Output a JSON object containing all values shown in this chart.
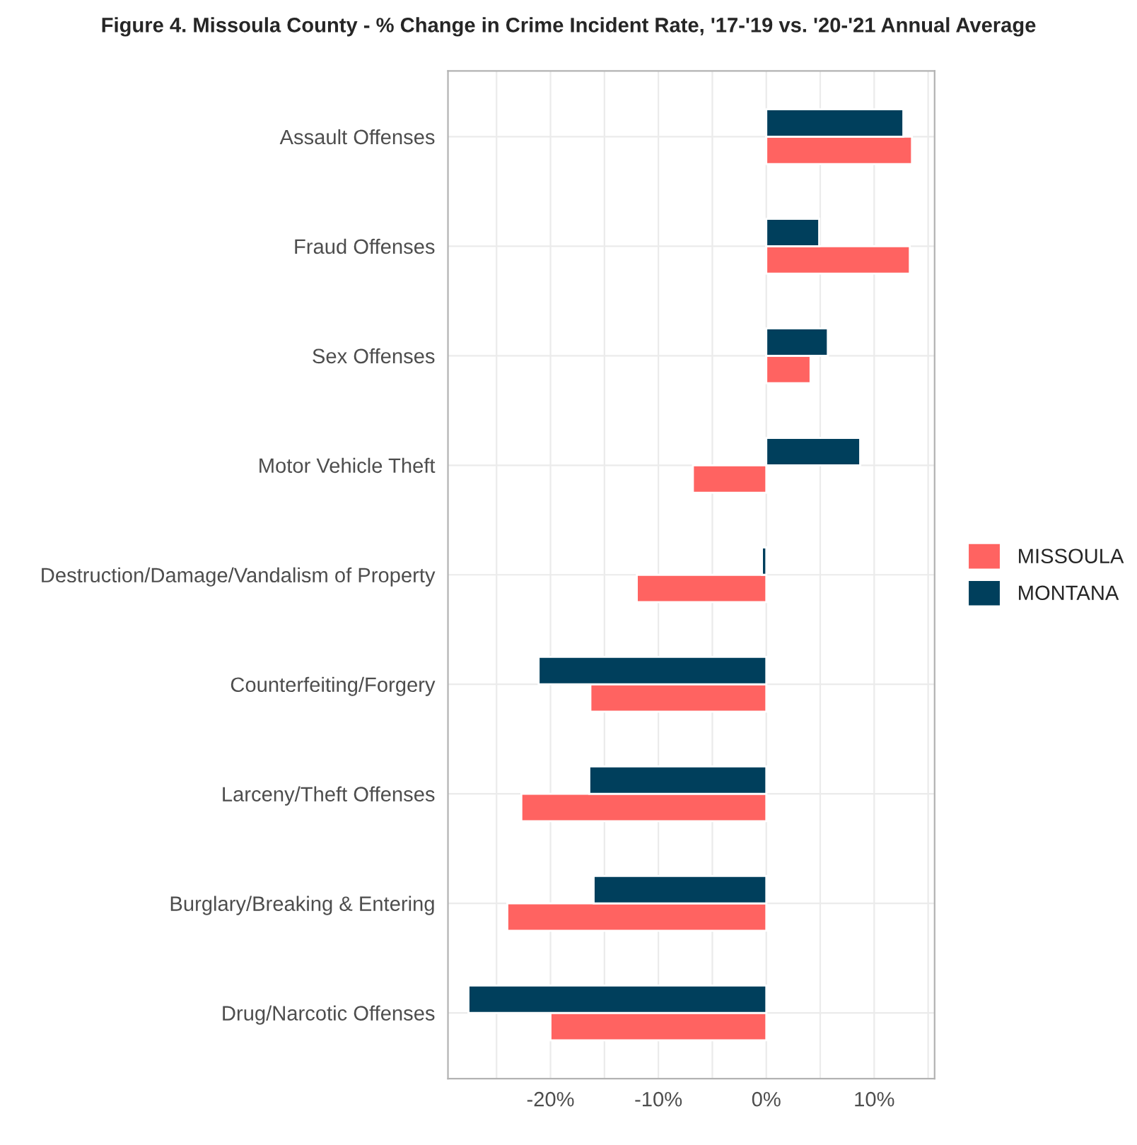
{
  "chart_data": {
    "type": "bar",
    "orientation": "horizontal",
    "title": "Figure 4. Missoula County - % Change in Crime Incident Rate, '17-'19 vs. '20-'21 Annual Average",
    "categories": [
      "Assault Offenses",
      "Fraud Offenses",
      "Sex Offenses",
      "Motor Vehicle Theft",
      "Destruction/Damage/Vandalism of Property",
      "Counterfeiting/Forgery",
      "Larceny/Theft Offenses",
      "Burglary/Breaking & Entering",
      "Drug/Narcotic Offenses"
    ],
    "series": [
      {
        "name": "MISSOULA",
        "color": "#ff6361",
        "values": [
          13.5,
          13.3,
          4.1,
          -6.8,
          -12.0,
          -16.3,
          -22.7,
          -24.0,
          -20.0
        ]
      },
      {
        "name": "MONTANA",
        "color": "#003f5c",
        "values": [
          12.7,
          4.9,
          5.7,
          8.7,
          -0.4,
          -21.1,
          -16.4,
          -16.0,
          -27.6
        ]
      }
    ],
    "xlim": [
      -29.5,
      15.6
    ],
    "xticks": [
      {
        "value": -25,
        "label": null
      },
      {
        "value": -20,
        "label": "-20%"
      },
      {
        "value": -15,
        "label": null
      },
      {
        "value": -10,
        "label": "-10%"
      },
      {
        "value": -5,
        "label": null
      },
      {
        "value": 0,
        "label": "0%"
      },
      {
        "value": 5,
        "label": null
      },
      {
        "value": 10,
        "label": "10%"
      },
      {
        "value": 15,
        "label": null
      }
    ],
    "grid": true,
    "legend": "right"
  }
}
